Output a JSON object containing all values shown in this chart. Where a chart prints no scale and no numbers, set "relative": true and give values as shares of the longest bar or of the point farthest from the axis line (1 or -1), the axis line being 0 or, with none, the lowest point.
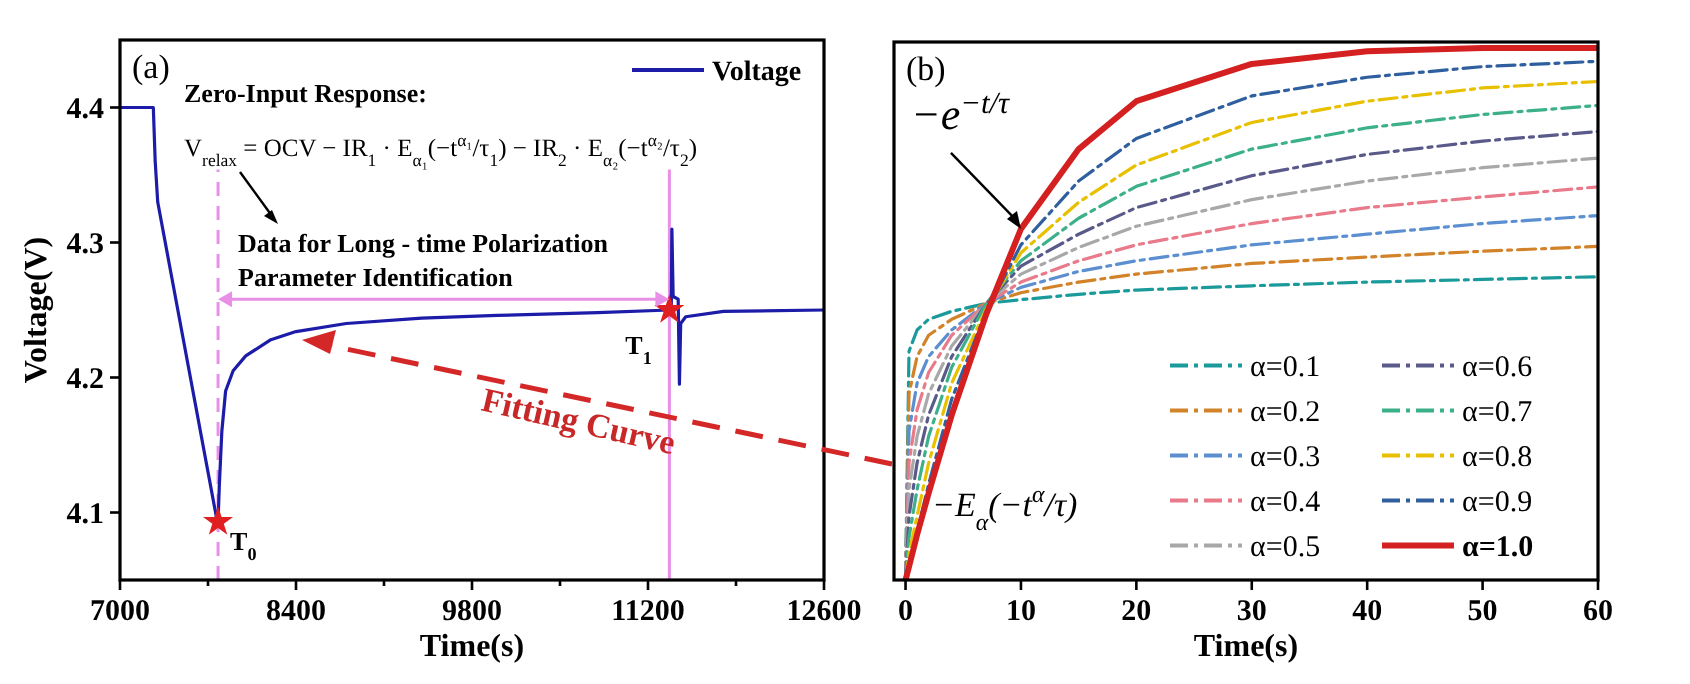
{
  "chart_data": [
    {
      "type": "line",
      "title": "(a)",
      "xlabel": "Time(s)",
      "ylabel": "Voltage(V)",
      "xlim": [
        7000,
        12600
      ],
      "ylim": [
        4.05,
        4.45
      ],
      "xticks": [
        7000,
        {
          "value": 7700,
          "label": null
        },
        8400,
        {
          "value": 9100,
          "label": null
        },
        9800,
        {
          "value": 10500,
          "label": null
        },
        11200,
        {
          "value": 11900,
          "label": null
        },
        12600
      ],
      "yticks": [
        4.1,
        4.2,
        4.3,
        4.4
      ],
      "legend": "top right",
      "series": [
        {
          "name": "Voltage",
          "color": "#1c1ca8",
          "marker": "none",
          "line_style": "solid",
          "x": [
            7000,
            7265,
            7280,
            7300,
            7400,
            7500,
            7600,
            7700,
            7770,
            7780,
            7790,
            7810,
            7840,
            7900,
            8000,
            8200,
            8400,
            8800,
            9400,
            10000,
            10800,
            11370,
            11385,
            11390,
            11400,
            11440,
            11450,
            11460,
            11500,
            11800,
            12600
          ],
          "values": [
            4.4,
            4.4,
            4.36,
            4.33,
            4.28,
            4.23,
            4.18,
            4.13,
            4.095,
            4.093,
            4.12,
            4.16,
            4.19,
            4.205,
            4.216,
            4.228,
            4.234,
            4.24,
            4.244,
            4.246,
            4.248,
            4.25,
            4.25,
            4.31,
            4.26,
            4.258,
            4.195,
            4.24,
            4.245,
            4.249,
            4.25
          ]
        },
        {
          "type": "scatter",
          "color": "#e02020",
          "marker": "star",
          "x": [
            7780,
            11370
          ],
          "values": [
            4.093,
            4.25
          ]
        }
      ],
      "ref_lines": [
        {
          "axis": "x",
          "value": 7780,
          "color": "#e890e8",
          "line_style": "dashed"
        },
        {
          "axis": "x",
          "value": 11370,
          "color": "#e890e8",
          "line_style": "solid"
        }
      ],
      "annotations": [
        "Zero-Input Response:",
        "V$_{relax}$ = OCV − IR$_{1}$ · E$_{α₁}$(−t$^{α₁}$/τ$_{1}$) − IR$_{2}$ · E$_{α₂}$(−t$^{α₂}$/τ$_{2}$)",
        "Data for Long - time Polarization",
        "Parameter Identification",
        "Fitting Curve",
        {
          "text": "T$_{0}$",
          "x": 7780,
          "y": 4.093
        },
        {
          "text": "T$_{1}$",
          "x": 11370,
          "y": 4.25
        }
      ]
    },
    {
      "type": "line",
      "title": "(b)",
      "xlabel": "Time(s)",
      "relative": true,
      "tick_labels": "x",
      "xlim": [
        -1,
        60
      ],
      "xticks": [
        0,
        10,
        20,
        30,
        40,
        50,
        60
      ],
      "legend": "bottom right",
      "x": [
        0,
        0.3,
        1,
        2,
        4,
        7,
        10,
        15,
        20,
        30,
        40,
        50,
        60
      ],
      "series": [
        {
          "name": "α=0.1",
          "color": "#1a9a9a",
          "line_style": "dashed",
          "values": [
            0,
            0.43,
            0.47,
            0.49,
            0.505,
            0.52,
            0.527,
            0.537,
            0.545,
            0.553,
            0.56,
            0.565,
            0.57
          ]
        },
        {
          "name": "α=0.2",
          "color": "#d2832a",
          "line_style": "dashed",
          "values": [
            0,
            0.35,
            0.42,
            0.46,
            0.49,
            0.52,
            0.54,
            0.56,
            0.575,
            0.595,
            0.607,
            0.618,
            0.627
          ]
        },
        {
          "name": "α=0.3",
          "color": "#5b8fd0",
          "line_style": "dashed",
          "values": [
            0,
            0.28,
            0.37,
            0.42,
            0.47,
            0.52,
            0.55,
            0.58,
            0.6,
            0.63,
            0.65,
            0.67,
            0.685
          ]
        },
        {
          "name": "α=0.4",
          "color": "#e87a8a",
          "line_style": "dashed",
          "values": [
            0,
            0.22,
            0.32,
            0.39,
            0.46,
            0.52,
            0.56,
            0.6,
            0.63,
            0.67,
            0.7,
            0.72,
            0.739
          ]
        },
        {
          "name": "α=0.5",
          "color": "#a8a8a8",
          "line_style": "dashed",
          "values": [
            0,
            0.17,
            0.27,
            0.35,
            0.44,
            0.52,
            0.575,
            0.625,
            0.665,
            0.715,
            0.75,
            0.775,
            0.793
          ]
        },
        {
          "name": "α=0.6",
          "color": "#5a5a8a",
          "line_style": "dashed",
          "values": [
            0,
            0.12,
            0.22,
            0.31,
            0.42,
            0.52,
            0.59,
            0.65,
            0.7,
            0.76,
            0.8,
            0.825,
            0.843
          ]
        },
        {
          "name": "α=0.7",
          "color": "#3cb08a",
          "line_style": "dashed",
          "values": [
            0,
            0.08,
            0.17,
            0.27,
            0.4,
            0.52,
            0.6,
            0.68,
            0.74,
            0.81,
            0.85,
            0.875,
            0.892
          ]
        },
        {
          "name": "α=0.8",
          "color": "#e8c000",
          "line_style": "dashed",
          "values": [
            0,
            0.05,
            0.12,
            0.22,
            0.37,
            0.51,
            0.615,
            0.71,
            0.78,
            0.86,
            0.9,
            0.925,
            0.937
          ]
        },
        {
          "name": "α=0.9",
          "color": "#2f5f9f",
          "line_style": "dashed",
          "values": [
            0,
            0.03,
            0.09,
            0.18,
            0.34,
            0.505,
            0.63,
            0.75,
            0.83,
            0.91,
            0.945,
            0.965,
            0.975
          ]
        },
        {
          "name": "α=1.0",
          "color": "#d42020",
          "line_style": "solid",
          "values": [
            0,
            0.025,
            0.085,
            0.163,
            0.31,
            0.5,
            0.66,
            0.81,
            0.9,
            0.97,
            0.994,
            1,
            1
          ]
        }
      ],
      "annotations": [
        {
          "text": "−e$^{−t/τ}$",
          "x": 10,
          "y": 0.66
        },
        "−E$_{α}$(−t$^{α}$/τ)"
      ]
    }
  ]
}
